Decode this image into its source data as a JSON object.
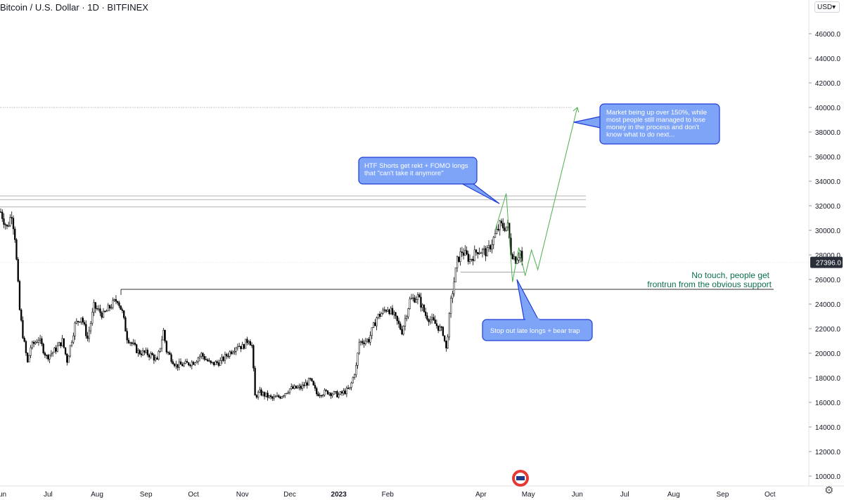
{
  "header": {
    "symbol_title": "Bitcoin / U.S. Dollar · 1D · BITFINEX",
    "currency": "USD",
    "currency_arrow": "▾"
  },
  "settings_icon": "gear-icon",
  "colors": {
    "up_candle": "#ffffff",
    "down_candle": "#000000",
    "wick": "#000000",
    "projection": "#4caf50",
    "callout_fill": "#7ea4f8",
    "callout_border": "#1f3cd8",
    "support_text": "#0b6e4f",
    "axis_text": "#131722",
    "grid": "#c4c7cf"
  },
  "chart_data": {
    "type": "candlestick",
    "title": "Bitcoin / U.S. Dollar · 1D · BITFINEX",
    "y_axis": {
      "ticks": [
        10000,
        12000,
        14000,
        16000,
        18000,
        20000,
        22000,
        24000,
        26000,
        28000,
        30000,
        32000,
        34000,
        36000,
        38000,
        40000,
        42000,
        44000,
        46000
      ],
      "tick_labels": [
        "10000.0",
        "12000.0",
        "14000.0",
        "16000.0",
        "18000.0",
        "20000.0",
        "22000.0",
        "24000.0",
        "26000.0",
        "28000.0",
        "30000.0",
        "32000.0",
        "34000.0",
        "36000.0",
        "38000.0",
        "40000.0",
        "42000.0",
        "44000.0",
        "46000.0"
      ],
      "ylim": [
        9000,
        48500
      ],
      "current_price_label": "27396.0",
      "current_price": 27396
    },
    "x_axis": {
      "labels": [
        "Jun",
        "Jul",
        "Aug",
        "Sep",
        "Oct",
        "Nov",
        "Dec",
        "2023",
        "Feb",
        "Apr",
        "May",
        "Jun",
        "Jul",
        "Aug",
        "Sep",
        "Oct"
      ],
      "label_dates": [
        "2022-06-01",
        "2022-07-01",
        "2022-08-01",
        "2022-09-01",
        "2022-10-01",
        "2022-11-01",
        "2022-12-01",
        "2023-01-01",
        "2023-02-01",
        "2023-04-01",
        "2023-05-01",
        "2023-06-01",
        "2023-07-01",
        "2023-08-01",
        "2023-09-01",
        "2023-10-01"
      ],
      "range": [
        "2022-06-01",
        "2023-10-26"
      ]
    },
    "price_path": [
      [
        "2022-06-01",
        31500
      ],
      [
        "2022-06-05",
        30200
      ],
      [
        "2022-06-08",
        31400
      ],
      [
        "2022-06-10",
        29500
      ],
      [
        "2022-06-13",
        23500
      ],
      [
        "2022-06-15",
        21500
      ],
      [
        "2022-06-18",
        19200
      ],
      [
        "2022-06-20",
        20500
      ],
      [
        "2022-06-25",
        21200
      ],
      [
        "2022-06-30",
        19700
      ],
      [
        "2022-07-05",
        20200
      ],
      [
        "2022-07-10",
        21000
      ],
      [
        "2022-07-13",
        19400
      ],
      [
        "2022-07-18",
        22300
      ],
      [
        "2022-07-22",
        23000
      ],
      [
        "2022-07-26",
        21200
      ],
      [
        "2022-07-30",
        23800
      ],
      [
        "2022-08-05",
        23100
      ],
      [
        "2022-08-10",
        23900
      ],
      [
        "2022-08-14",
        24400
      ],
      [
        "2022-08-17",
        23300
      ],
      [
        "2022-08-20",
        21300
      ],
      [
        "2022-08-27",
        20100
      ],
      [
        "2022-09-01",
        20000
      ],
      [
        "2022-09-05",
        19800
      ],
      [
        "2022-09-08",
        19300
      ],
      [
        "2022-09-12",
        21800
      ],
      [
        "2022-09-14",
        20200
      ],
      [
        "2022-09-20",
        19000
      ],
      [
        "2022-09-26",
        19100
      ],
      [
        "2022-10-01",
        19300
      ],
      [
        "2022-10-06",
        19900
      ],
      [
        "2022-10-12",
        19100
      ],
      [
        "2022-10-18",
        19300
      ],
      [
        "2022-10-25",
        20200
      ],
      [
        "2022-10-29",
        20700
      ],
      [
        "2022-11-01",
        20500
      ],
      [
        "2022-11-05",
        21200
      ],
      [
        "2022-11-07",
        20600
      ],
      [
        "2022-11-09",
        16500
      ],
      [
        "2022-11-12",
        16800
      ],
      [
        "2022-11-20",
        16300
      ],
      [
        "2022-11-25",
        16500
      ],
      [
        "2022-12-01",
        17100
      ],
      [
        "2022-12-08",
        17200
      ],
      [
        "2022-12-14",
        17800
      ],
      [
        "2022-12-18",
        16700
      ],
      [
        "2022-12-25",
        16850
      ],
      [
        "2023-01-01",
        16600
      ],
      [
        "2023-01-08",
        17100
      ],
      [
        "2023-01-12",
        18900
      ],
      [
        "2023-01-14",
        20900
      ],
      [
        "2023-01-20",
        21100
      ],
      [
        "2023-01-25",
        22900
      ],
      [
        "2023-02-01",
        23700
      ],
      [
        "2023-02-05",
        23000
      ],
      [
        "2023-02-10",
        21800
      ],
      [
        "2023-02-15",
        24300
      ],
      [
        "2023-02-20",
        24600
      ],
      [
        "2023-02-25",
        23100
      ],
      [
        "2023-03-03",
        22400
      ],
      [
        "2023-03-08",
        21700
      ],
      [
        "2023-03-10",
        20300
      ],
      [
        "2023-03-13",
        24200
      ],
      [
        "2023-03-17",
        27500
      ],
      [
        "2023-03-20",
        28300
      ],
      [
        "2023-03-25",
        27600
      ],
      [
        "2023-03-30",
        28400
      ],
      [
        "2023-04-05",
        28200
      ],
      [
        "2023-04-10",
        29600
      ],
      [
        "2023-04-13",
        30400
      ],
      [
        "2023-04-15",
        30300
      ],
      [
        "2023-04-18",
        30300
      ],
      [
        "2023-04-20",
        28300
      ],
      [
        "2023-04-23",
        27600
      ],
      [
        "2023-04-26",
        28300
      ],
      [
        "2023-04-27",
        27396
      ]
    ],
    "horizontal_levels": [
      {
        "name": "resistance_1",
        "value": 32800
      },
      {
        "name": "resistance_2",
        "value": 32500
      },
      {
        "name": "resistance_3",
        "value": 31900
      },
      {
        "name": "target",
        "value": 40000
      },
      {
        "name": "support",
        "value": 25200
      }
    ],
    "projection_path": [
      [
        "2023-04-10",
        30000
      ],
      [
        "2023-04-17",
        33000
      ],
      [
        "2023-04-21",
        25800
      ],
      [
        "2023-04-25",
        28600
      ],
      [
        "2023-04-29",
        26300
      ],
      [
        "2023-05-03",
        28400
      ],
      [
        "2023-05-07",
        26800
      ],
      [
        "2023-06-01",
        40000
      ]
    ]
  },
  "annotations": {
    "callout_market": "Market being up over 150%, while most people still managed to lose money in the process and don't know what to do next...",
    "callout_htf": "HTF Shorts get rekt + FOMO longs that \"can't take it anymore\"",
    "callout_stop": "Stop out late longs + bear trap",
    "support_text_line1": "No touch, people get",
    "support_text_line2": "frontrun from the obvious support"
  }
}
